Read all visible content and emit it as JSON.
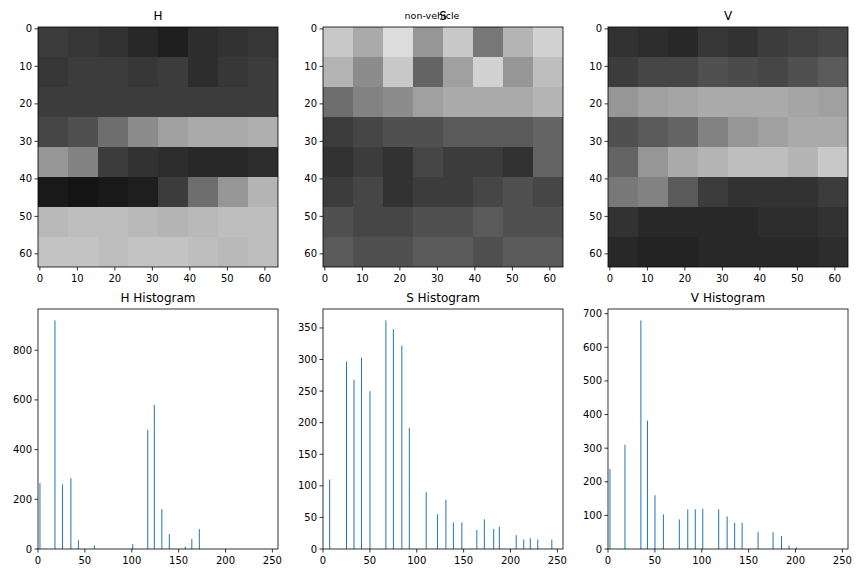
{
  "title": "non-vehicle",
  "chart_data": [
    {
      "type": "image",
      "title": "H",
      "color": "gray",
      "xlim": [
        -0.5,
        63.5
      ],
      "ylim": [
        63.5,
        -0.5
      ],
      "xticks": [
        0,
        10,
        20,
        30,
        40,
        50,
        60
      ],
      "yticks": [
        0,
        10,
        20,
        30,
        40,
        50,
        60
      ],
      "cells": [
        [
          60,
          55,
          50,
          40,
          30,
          45,
          50,
          55
        ],
        [
          55,
          60,
          60,
          55,
          60,
          45,
          55,
          60
        ],
        [
          60,
          60,
          60,
          60,
          60,
          60,
          60,
          60
        ],
        [
          70,
          80,
          110,
          140,
          160,
          170,
          170,
          175
        ],
        [
          150,
          130,
          60,
          50,
          45,
          40,
          40,
          45
        ],
        [
          25,
          20,
          25,
          30,
          60,
          110,
          150,
          180
        ],
        [
          185,
          190,
          190,
          185,
          180,
          185,
          190,
          190
        ],
        [
          195,
          195,
          190,
          195,
          195,
          190,
          185,
          190
        ]
      ]
    },
    {
      "type": "image",
      "title": "S",
      "color": "gray",
      "xlim": [
        -0.5,
        63.5
      ],
      "ylim": [
        63.5,
        -0.5
      ],
      "xticks": [
        0,
        10,
        20,
        30,
        40,
        50,
        60
      ],
      "yticks": [
        0,
        10,
        20,
        30,
        40,
        50,
        60
      ],
      "cells": [
        [
          200,
          170,
          220,
          150,
          200,
          120,
          180,
          210
        ],
        [
          180,
          140,
          200,
          100,
          160,
          210,
          150,
          190
        ],
        [
          110,
          130,
          140,
          160,
          170,
          170,
          170,
          180
        ],
        [
          60,
          70,
          80,
          80,
          90,
          90,
          90,
          100
        ],
        [
          50,
          60,
          50,
          70,
          60,
          60,
          50,
          100
        ],
        [
          60,
          70,
          50,
          60,
          60,
          70,
          80,
          70
        ],
        [
          80,
          70,
          70,
          80,
          80,
          90,
          80,
          80
        ],
        [
          90,
          80,
          80,
          90,
          90,
          80,
          90,
          90
        ]
      ]
    },
    {
      "type": "image",
      "title": "V",
      "color": "gray",
      "xlim": [
        -0.5,
        63.5
      ],
      "ylim": [
        63.5,
        -0.5
      ],
      "xticks": [
        0,
        10,
        20,
        30,
        40,
        50,
        60
      ],
      "yticks": [
        0,
        10,
        20,
        30,
        40,
        50,
        60
      ],
      "cells": [
        [
          50,
          45,
          40,
          55,
          50,
          60,
          65,
          70
        ],
        [
          60,
          70,
          70,
          80,
          75,
          70,
          80,
          90
        ],
        [
          150,
          160,
          165,
          170,
          170,
          170,
          165,
          160
        ],
        [
          80,
          90,
          100,
          130,
          150,
          160,
          170,
          170
        ],
        [
          100,
          150,
          170,
          180,
          190,
          190,
          180,
          200
        ],
        [
          120,
          130,
          90,
          60,
          50,
          50,
          50,
          60
        ],
        [
          50,
          40,
          40,
          40,
          40,
          45,
          45,
          50
        ],
        [
          40,
          35,
          35,
          40,
          40,
          40,
          40,
          45
        ]
      ]
    },
    {
      "type": "bar",
      "title": "H Histogram",
      "color": "#1f77b4",
      "xlim": [
        0,
        256
      ],
      "ylim": [
        0,
        966
      ],
      "xticks": [
        0,
        50,
        100,
        150,
        200,
        250
      ],
      "yticks": [
        0,
        200,
        400,
        600,
        800
      ],
      "x": [
        2,
        18,
        26,
        35,
        43,
        60,
        101,
        117,
        124,
        132,
        140,
        157,
        164,
        172
      ],
      "values": [
        265,
        920,
        260,
        285,
        35,
        15,
        20,
        480,
        580,
        160,
        60,
        10,
        40,
        80
      ]
    },
    {
      "type": "bar",
      "title": "S Histogram",
      "color": "#1f77b4",
      "xlim": [
        0,
        256
      ],
      "ylim": [
        0,
        380
      ],
      "xticks": [
        0,
        50,
        100,
        150,
        200,
        250
      ],
      "yticks": [
        0,
        50,
        100,
        150,
        200,
        250,
        300,
        350
      ],
      "x": [
        7,
        25,
        33,
        41,
        50,
        67,
        75,
        84,
        92,
        110,
        122,
        131,
        139,
        148,
        164,
        172,
        182,
        188,
        206,
        214,
        221,
        229,
        244
      ],
      "values": [
        110,
        297,
        268,
        303,
        250,
        362,
        348,
        322,
        192,
        90,
        55,
        78,
        42,
        42,
        30,
        47,
        32,
        35,
        22,
        15,
        17,
        15,
        15
      ]
    },
    {
      "type": "bar",
      "title": "V Histogram",
      "color": "#1f77b4",
      "xlim": [
        0,
        256
      ],
      "ylim": [
        0,
        714
      ],
      "xticks": [
        0,
        50,
        100,
        150,
        200,
        250
      ],
      "yticks": [
        0,
        100,
        200,
        300,
        400,
        500,
        600,
        700
      ],
      "x": [
        2,
        18,
        35,
        42,
        50,
        59,
        76,
        85,
        93,
        101,
        118,
        127,
        135,
        143,
        160,
        176,
        185,
        193,
        201
      ],
      "values": [
        238,
        310,
        680,
        382,
        160,
        103,
        88,
        118,
        118,
        120,
        118,
        97,
        78,
        78,
        50,
        50,
        38,
        10,
        5
      ]
    }
  ]
}
